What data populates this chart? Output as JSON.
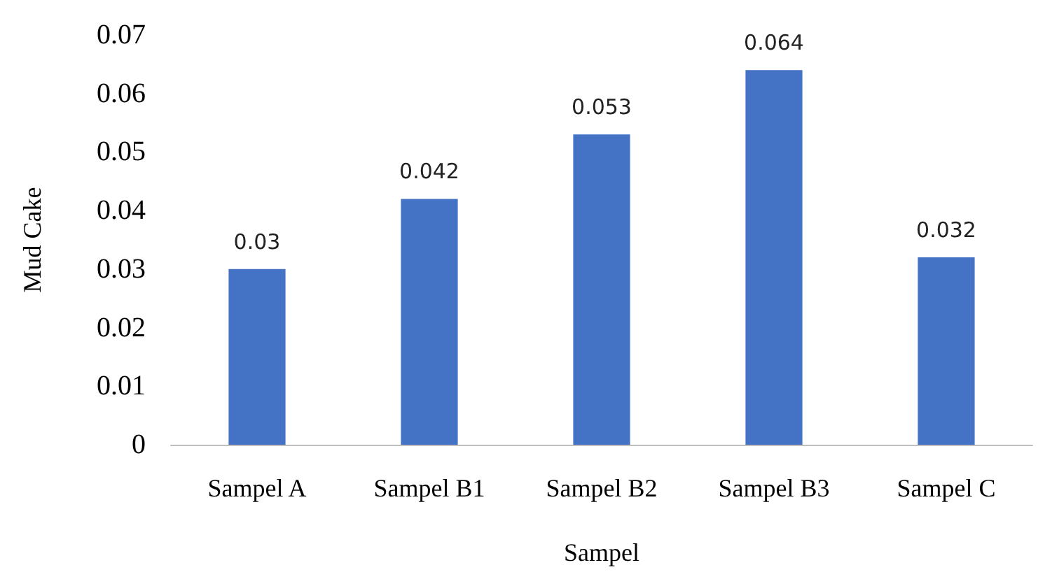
{
  "chart_data": {
    "type": "bar",
    "xlabel": "Sampel",
    "ylabel": "Mud Cake",
    "categories": [
      "Sampel A",
      "Sampel B1",
      "Sampel B2",
      "Sampel B3",
      "Sampel C"
    ],
    "values": [
      0.03,
      0.042,
      0.053,
      0.064,
      0.032
    ],
    "color": "#4472c4",
    "ylim": [
      0,
      0.07
    ],
    "yticks": [
      0,
      0.01,
      0.02,
      0.03,
      0.04,
      0.05,
      0.06,
      0.07
    ],
    "data_labels": true,
    "grid": false
  }
}
